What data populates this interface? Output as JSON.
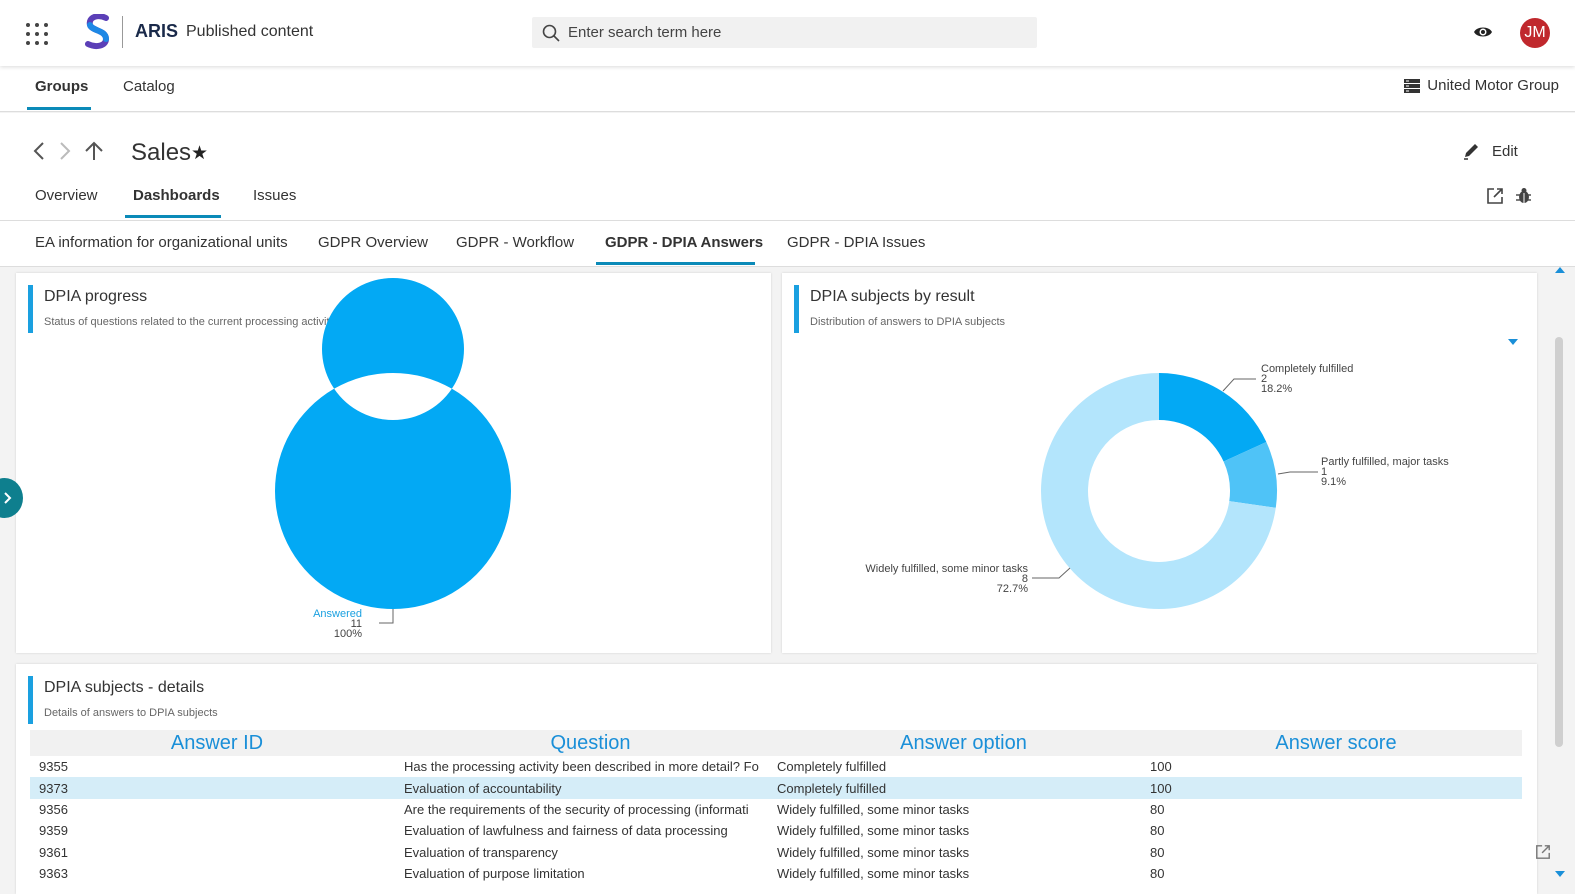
{
  "topbar": {
    "brand": "ARIS",
    "brand_sub": "Published content",
    "search_placeholder": "Enter search term here",
    "avatar_initials": "JM",
    "avatar_color": "#c0282d"
  },
  "main_tabs": [
    {
      "label": "Groups",
      "active": true
    },
    {
      "label": "Catalog",
      "active": false
    }
  ],
  "organization": "United Motor Group",
  "page": {
    "title": "Sales",
    "edit_label": "Edit",
    "tabs": [
      {
        "label": "Overview",
        "active": false
      },
      {
        "label": "Dashboards",
        "active": true
      },
      {
        "label": "Issues",
        "active": false
      }
    ]
  },
  "dashboard_tabs": [
    {
      "label": "EA information for organizational units",
      "active": false
    },
    {
      "label": "GDPR Overview",
      "active": false
    },
    {
      "label": "GDPR - Workflow",
      "active": false
    },
    {
      "label": "GDPR - DPIA Answers",
      "active": true
    },
    {
      "label": "GDPR - DPIA Issues",
      "active": false
    }
  ],
  "progress_card": {
    "title": "DPIA progress",
    "subtitle": "Status of questions related to the current processing activity"
  },
  "result_card": {
    "title": "DPIA subjects by result",
    "subtitle": "Distribution of answers to DPIA subjects"
  },
  "details_card": {
    "title": "DPIA subjects - details",
    "subtitle": "Details of answers to DPIA subjects",
    "columns": [
      "Answer ID",
      "Question",
      "Answer option",
      "Answer score"
    ],
    "rows": [
      {
        "id": "9355",
        "question": "Has the processing activity been described in more detail? Fo",
        "option": "Completely fulfilled",
        "score": "100",
        "selected": false
      },
      {
        "id": "9373",
        "question": "Evaluation of accountability",
        "option": "Completely fulfilled",
        "score": "100",
        "selected": true
      },
      {
        "id": "9356",
        "question": "Are the requirements of the security of processing (informati",
        "option": "Widely fulfilled, some minor tasks",
        "score": "80",
        "selected": false
      },
      {
        "id": "9359",
        "question": "Evaluation of lawfulness and fairness of data processing",
        "option": "Widely fulfilled, some minor tasks",
        "score": "80",
        "selected": false
      },
      {
        "id": "9361",
        "question": "Evaluation of transparency",
        "option": "Widely fulfilled, some minor tasks",
        "score": "80",
        "selected": false
      },
      {
        "id": "9363",
        "question": "Evaluation of purpose limitation",
        "option": "Widely fulfilled, some minor tasks",
        "score": "80",
        "selected": false
      }
    ]
  },
  "chart_data": [
    {
      "type": "pie",
      "style": "donut",
      "title": "DPIA progress",
      "slices": [
        {
          "label": "Answered",
          "count": "11",
          "percent": "100%",
          "value": 11,
          "color": "#03a9f4"
        }
      ]
    },
    {
      "type": "pie",
      "style": "donut",
      "title": "DPIA subjects by result",
      "slices": [
        {
          "label": "Completely fulfilled",
          "count": "2",
          "percent": "18.2%",
          "value": 2,
          "color": "#03a9f4"
        },
        {
          "label": "Partly fulfilled, major tasks",
          "count": "1",
          "percent": "9.1%",
          "value": 1,
          "color": "#4fc3f7"
        },
        {
          "label": "Widely fulfilled, some minor tasks",
          "count": "8",
          "percent": "72.7%",
          "value": 8,
          "color": "#b3e5fc"
        }
      ]
    }
  ]
}
